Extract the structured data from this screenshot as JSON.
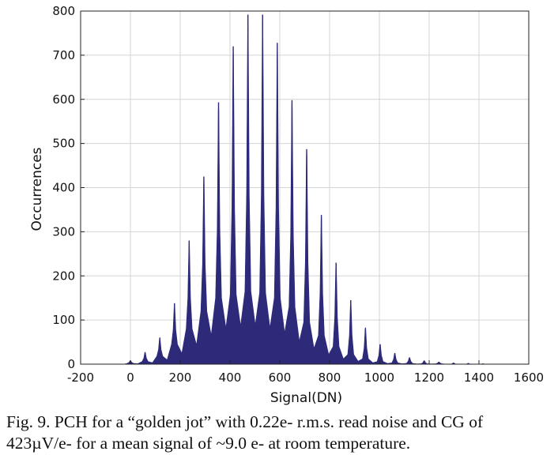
{
  "caption": {
    "line1": "Fig. 9. PCH for a “golden jot” with 0.22e- r.m.s. read noise and CG of",
    "line2": "423µV/e- for a mean signal of ~9.0 e- at room temperature."
  },
  "colors": {
    "bars": "#2e2a7a",
    "grid": "#d4d4d4",
    "axis": "#222222"
  },
  "chart_data": {
    "type": "bar",
    "title": "",
    "xlabel": "Signal(DN)",
    "ylabel": "Occurrences",
    "xlim": [
      -200,
      1600
    ],
    "ylim": [
      0,
      800
    ],
    "grid": true,
    "xticks": [
      -200,
      0,
      200,
      400,
      600,
      800,
      1000,
      1200,
      1400,
      1600
    ],
    "yticks": [
      0,
      100,
      200,
      300,
      400,
      500,
      600,
      700,
      800
    ],
    "xtick_labels": [
      "-200",
      "0",
      "200",
      "400",
      "600",
      "800",
      "1000",
      "1200",
      "1400",
      "1600"
    ],
    "ytick_labels": [
      "0",
      "100",
      "200",
      "300",
      "400",
      "500",
      "600",
      "700",
      "800"
    ],
    "series": [
      {
        "name": "PCH",
        "peak_dn": [
          0,
          59,
          118,
          177,
          236,
          295,
          354,
          413,
          472,
          531,
          590,
          649,
          708,
          767,
          826,
          885,
          944,
          1003,
          1062,
          1121,
          1180,
          1239,
          1298,
          1357,
          1416
        ],
        "peak_counts": [
          8,
          27,
          60,
          138,
          280,
          425,
          593,
          720,
          792,
          792,
          728,
          598,
          487,
          338,
          230,
          145,
          82,
          45,
          25,
          15,
          8,
          5,
          3,
          2,
          1
        ],
        "valley_counts": [
          2,
          6,
          18,
          45,
          80,
          120,
          150,
          158,
          165,
          162,
          150,
          130,
          95,
          65,
          40,
          22,
          12,
          6,
          3,
          2,
          1,
          1,
          0,
          0,
          0
        ]
      }
    ]
  }
}
